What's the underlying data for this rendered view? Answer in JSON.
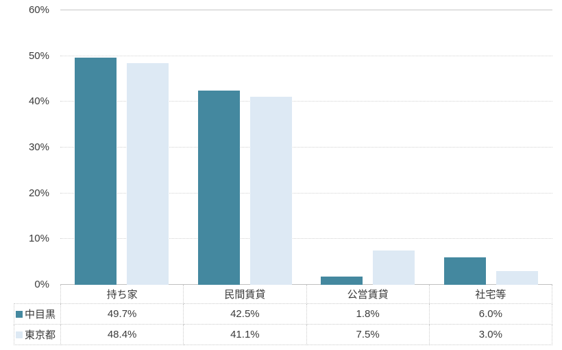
{
  "chart_data": {
    "type": "bar",
    "title": "",
    "xlabel": "",
    "ylabel": "",
    "categories": [
      "持ち家",
      "民間賃貸",
      "公営賃貸",
      "社宅等"
    ],
    "series": [
      {
        "name": "中目黒",
        "color": "#44889f",
        "values": [
          49.7,
          42.5,
          1.8,
          6.0
        ]
      },
      {
        "name": "東京都",
        "color": "#dde9f4",
        "values": [
          48.4,
          41.1,
          7.5,
          3.0
        ]
      }
    ],
    "ylim": [
      0,
      60
    ],
    "ytick_values": [
      0,
      10,
      20,
      30,
      40,
      50,
      60
    ],
    "yticks": [
      "0%",
      "10%",
      "20%",
      "30%",
      "40%",
      "50%",
      "60%"
    ],
    "grid": true,
    "legend_position": "data-table-left-column"
  },
  "table": {
    "rows": [
      {
        "label": "中目黒",
        "cells": [
          "49.7%",
          "42.5%",
          "1.8%",
          "6.0%"
        ]
      },
      {
        "label": "東京都",
        "cells": [
          "48.4%",
          "41.1%",
          "7.5%",
          "3.0%"
        ]
      }
    ]
  },
  "colors": {
    "background": "#ffffff",
    "gridline": "#d2d2d2",
    "axis_line": "#bfbfbf",
    "top_line": "#c6c6c6",
    "table_border": "#c9c9c9",
    "text": "#3a3a3a",
    "series1": "#44889f",
    "series2": "#dde9f4"
  }
}
